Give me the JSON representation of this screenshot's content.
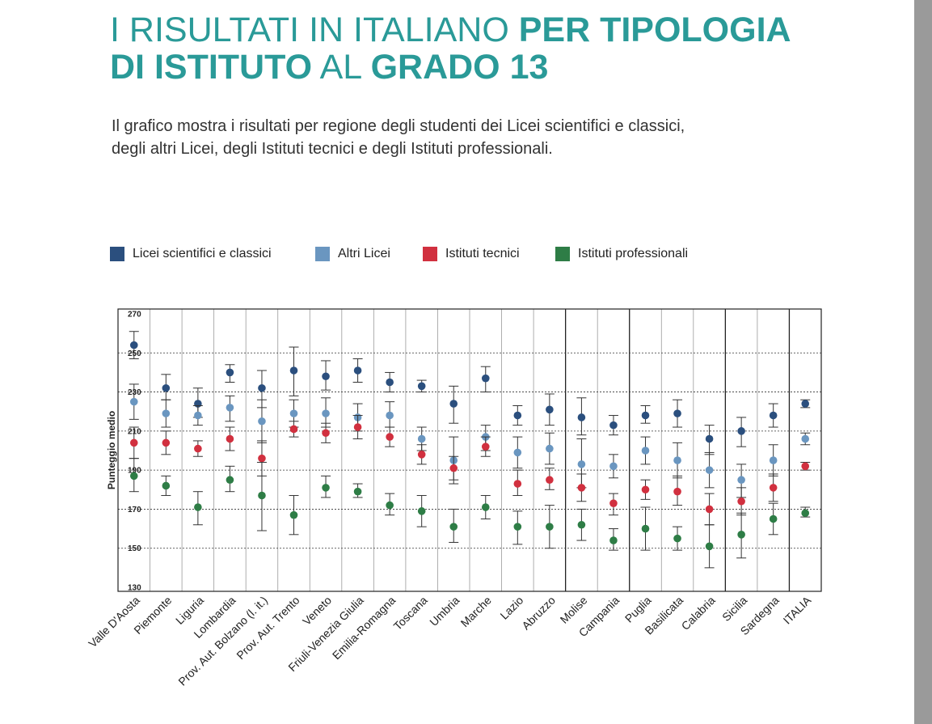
{
  "title": {
    "part1": "I RISULTATI IN ITALIANO ",
    "part2": "PER TIPOLOGIA",
    "part3": "DI ISTITUTO",
    "part4": " AL ",
    "part5": "GRADO 13"
  },
  "subtitle": {
    "line1": "Il grafico mostra i risultati per regione degli studenti dei Licei scientifici e classici,",
    "line2": "degli altri Licei, degli Istituti tecnici e degli Istituti professionali."
  },
  "colors": {
    "title": "#2a9a98",
    "licei_sc": "#2b4f7e",
    "altri_licei": "#6a96c0",
    "tecnici": "#d1303f",
    "professionali": "#2e7d46"
  },
  "legend": [
    {
      "label": "Licei scientifici e classici",
      "color": "#2b4f7e"
    },
    {
      "label": "Altri Licei",
      "color": "#6a96c0"
    },
    {
      "label": "Istituti tecnici",
      "color": "#d1303f"
    },
    {
      "label": "Istituti professionali",
      "color": "#2e7d46"
    }
  ],
  "chart_data": {
    "type": "scatter",
    "ylabel": "Punteggio medio",
    "ylim": [
      130,
      270
    ],
    "yticks": [
      270,
      250,
      230,
      210,
      190,
      170,
      150,
      130
    ],
    "grid": "dashed horizontal",
    "legend_position": "top",
    "categories": [
      "Valle D'Aosta",
      "Piemonte",
      "Liguria",
      "Lombardia",
      "Prov. Aut. Bolzano (l. it.)",
      "Prov. Aut. Trento",
      "Veneto",
      "Friuli-Venezia Giulia",
      "Emilia-Romagna",
      "Toscana",
      "Umbria",
      "Marche",
      "Lazio",
      "Abruzzo",
      "Molise",
      "Campania",
      "Puglia",
      "Basilicata",
      "Calabria",
      "Sicilia",
      "Sardegna",
      "ITALIA"
    ],
    "series": [
      {
        "name": "Licei scientifici e classici",
        "color": "#2b4f7e",
        "values": [
          254,
          232,
          224,
          240,
          232,
          241,
          238,
          241,
          235,
          233,
          224,
          237,
          218,
          221,
          217,
          213,
          218,
          219,
          206,
          210,
          218,
          224
        ],
        "err_low": [
          247,
          226,
          217,
          235,
          222,
          228,
          231,
          235,
          230,
          230,
          214,
          230,
          213,
          213,
          208,
          208,
          214,
          212,
          198,
          202,
          212,
          222
        ],
        "err_high": [
          261,
          239,
          232,
          244,
          241,
          253,
          246,
          247,
          240,
          236,
          233,
          243,
          223,
          229,
          227,
          218,
          223,
          226,
          213,
          217,
          224,
          226
        ]
      },
      {
        "name": "Altri Licei",
        "color": "#6a96c0",
        "values": [
          225,
          219,
          218,
          222,
          215,
          219,
          219,
          217,
          218,
          206,
          195,
          207,
          199,
          201,
          193,
          192,
          200,
          195,
          190,
          185,
          195,
          206
        ],
        "err_low": [
          216,
          212,
          213,
          215,
          204,
          212,
          212,
          210,
          212,
          200,
          183,
          200,
          191,
          193,
          181,
          186,
          193,
          186,
          181,
          176,
          187,
          203
        ],
        "err_high": [
          234,
          226,
          223,
          228,
          226,
          226,
          227,
          224,
          225,
          212,
          207,
          213,
          207,
          209,
          206,
          198,
          207,
          204,
          199,
          193,
          203,
          209
        ]
      },
      {
        "name": "Istituti tecnici",
        "color": "#d1303f",
        "values": [
          204,
          204,
          201,
          206,
          196,
          211,
          209,
          212,
          207,
          198,
          191,
          202,
          183,
          185,
          181,
          173,
          180,
          179,
          170,
          174,
          181,
          192
        ],
        "err_low": [
          196,
          198,
          197,
          200,
          187,
          207,
          204,
          206,
          202,
          193,
          185,
          197,
          177,
          180,
          174,
          167,
          175,
          172,
          162,
          167,
          174,
          190
        ],
        "err_high": [
          212,
          210,
          205,
          212,
          205,
          215,
          214,
          218,
          212,
          203,
          197,
          207,
          190,
          191,
          188,
          178,
          185,
          187,
          178,
          181,
          188,
          194
        ]
      },
      {
        "name": "Istituti professionali",
        "color": "#2e7d46",
        "values": [
          187,
          182,
          171,
          185,
          177,
          167,
          181,
          179,
          172,
          169,
          161,
          171,
          161,
          161,
          162,
          154,
          160,
          155,
          151,
          157,
          165,
          168
        ],
        "err_low": [
          179,
          177,
          162,
          179,
          159,
          157,
          176,
          176,
          167,
          161,
          153,
          165,
          152,
          150,
          154,
          149,
          149,
          149,
          140,
          145,
          157,
          166
        ],
        "err_high": [
          196,
          187,
          179,
          192,
          194,
          177,
          187,
          183,
          178,
          177,
          170,
          177,
          169,
          172,
          170,
          160,
          171,
          161,
          162,
          168,
          173,
          171
        ]
      }
    ]
  }
}
